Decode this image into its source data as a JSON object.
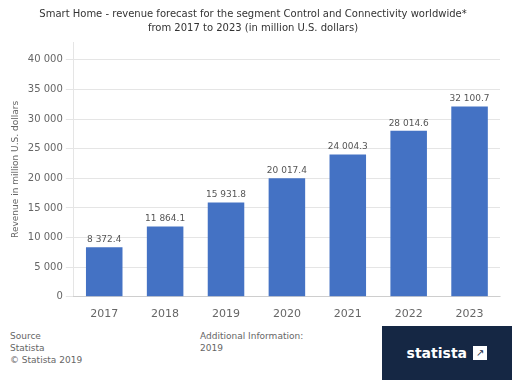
{
  "chart_data": {
    "type": "bar",
    "title": "Smart Home - revenue forecast for the segment Control and Connectivity worldwide*",
    "subtitle": "from 2017 to 2023 (in million U.S. dollars)",
    "ylabel": "Revenue in million U.S. dollars",
    "categories": [
      "2017",
      "2018",
      "2019",
      "2020",
      "2021",
      "2022",
      "2023"
    ],
    "values": [
      8372.4,
      11864.1,
      15931.8,
      20017.4,
      24004.3,
      28014.6,
      32100.7
    ],
    "value_labels": [
      "8 372.4",
      "11 864.1",
      "15 931.8",
      "20 017.4",
      "24 004.3",
      "28 014.6",
      "32 100.7"
    ],
    "data_labels": true,
    "color": "#4472c4",
    "ylim": [
      0,
      43000
    ],
    "yticks": [
      0,
      {
        "value": 5000,
        "label": "5 000"
      },
      {
        "value": 10000,
        "label": "10 000"
      },
      {
        "value": 15000,
        "label": "15 000"
      },
      {
        "value": 20000,
        "label": "20 000"
      },
      {
        "value": 25000,
        "label": "25 000"
      },
      {
        "value": 30000,
        "label": "30 000"
      },
      {
        "value": 35000,
        "label": "35 000"
      },
      {
        "value": 40000,
        "label": "40 000"
      }
    ],
    "grid": true,
    "annotations": [
      "Source\nStatista\n© Statista 2019",
      "Additional Information:\n2019",
      "statista",
      "↗"
    ]
  }
}
